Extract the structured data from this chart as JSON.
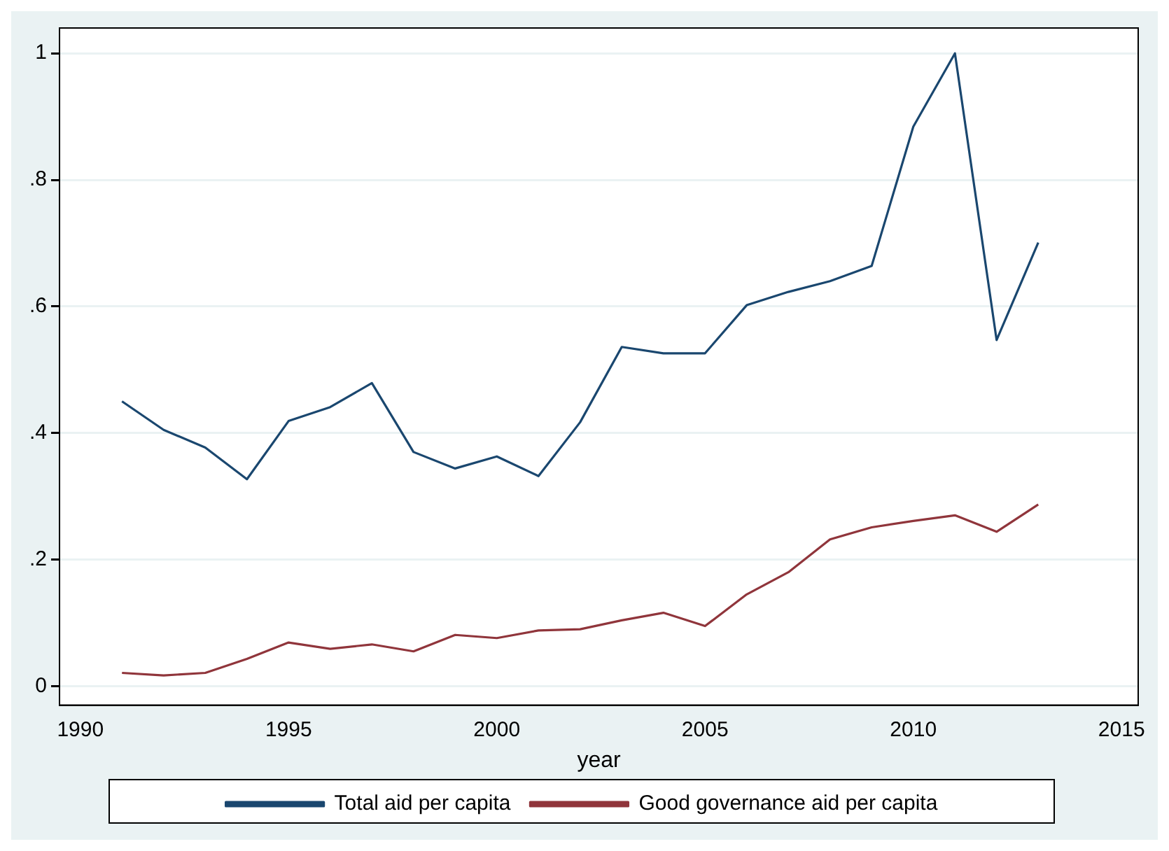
{
  "chart_data": {
    "type": "line",
    "xlabel": "year",
    "x": [
      1991,
      1992,
      1993,
      1994,
      1995,
      1996,
      1997,
      1998,
      1999,
      2000,
      2001,
      2002,
      2003,
      2004,
      2005,
      2006,
      2007,
      2008,
      2009,
      2010,
      2011,
      2012,
      2013
    ],
    "series": [
      {
        "name": "Total aid per capita",
        "color": "#1a476f",
        "values": [
          0.45,
          0.405,
          0.377,
          0.327,
          0.419,
          0.441,
          0.479,
          0.37,
          0.344,
          0.363,
          0.332,
          0.417,
          0.536,
          0.526,
          0.526,
          0.602,
          0.623,
          0.64,
          0.664,
          0.884,
          1.0,
          0.547,
          0.701
        ]
      },
      {
        "name": "Good governance aid per capita",
        "color": "#90353b",
        "values": [
          0.021,
          0.017,
          0.021,
          0.043,
          0.069,
          0.059,
          0.066,
          0.055,
          0.081,
          0.076,
          0.088,
          0.09,
          0.104,
          0.116,
          0.095,
          0.145,
          0.18,
          0.232,
          0.251,
          0.261,
          0.27,
          0.244,
          0.287
        ]
      }
    ],
    "xlim": [
      1989.5,
      2015.4
    ],
    "xticks": [
      1990,
      1995,
      2000,
      2005,
      2010,
      2015
    ],
    "ylim": [
      -0.03,
      1.04
    ],
    "yticks": [
      {
        "value": 0,
        "label": "0"
      },
      {
        "value": 0.2,
        "label": ".2"
      },
      {
        "value": 0.4,
        "label": ".4"
      },
      {
        "value": 0.6,
        "label": ".6"
      },
      {
        "value": 0.8,
        "label": ".8"
      },
      {
        "value": 1,
        "label": "1"
      }
    ],
    "grid": "y",
    "legend": "bottom",
    "marker": "none",
    "line_style": "solid"
  }
}
